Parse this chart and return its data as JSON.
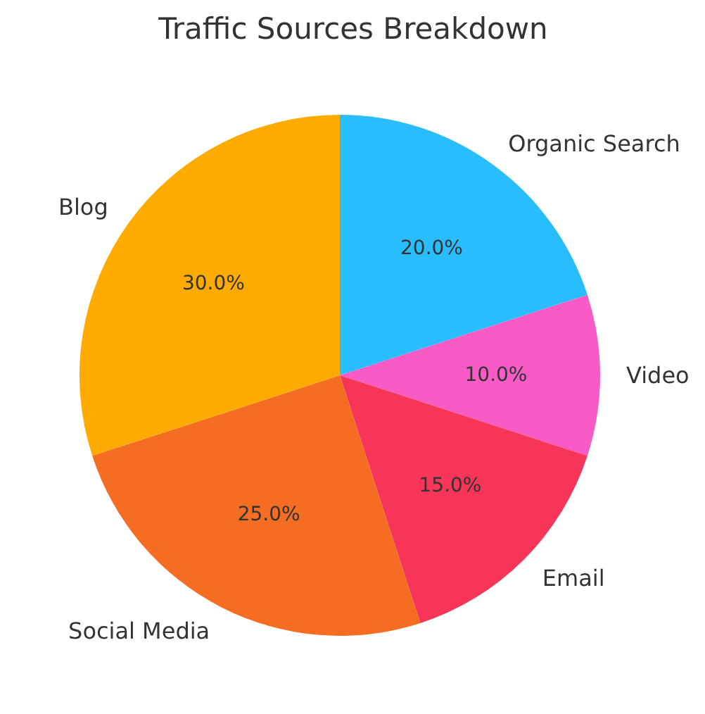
{
  "chart_data": {
    "type": "pie",
    "title": "Traffic Sources Breakdown",
    "categories": [
      "Organic Search",
      "Video",
      "Email",
      "Social Media",
      "Blog"
    ],
    "values": [
      20,
      10,
      15,
      25,
      30
    ],
    "colors": [
      "#29bdfd",
      "#f95bc6",
      "#f73558",
      "#f46d22",
      "#fdab00"
    ],
    "value_labels": [
      "20.0%",
      "10.0%",
      "15.0%",
      "25.0%",
      "30.0%"
    ]
  }
}
